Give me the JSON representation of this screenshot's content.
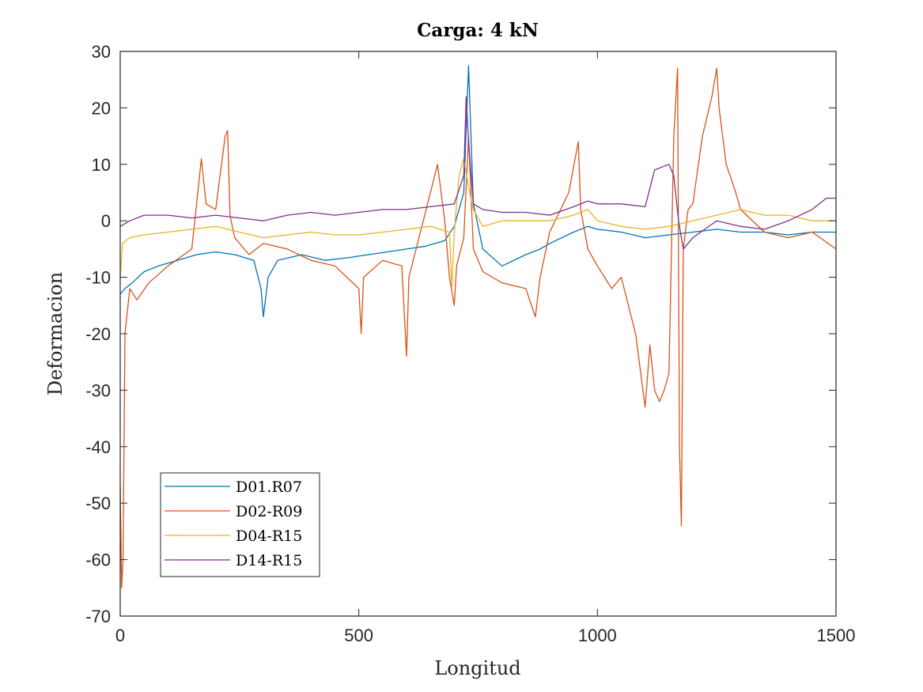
{
  "chart_data": {
    "type": "line",
    "title": "Carga: 4 kN",
    "xlabel": "Longitud",
    "ylabel": "Deformacion",
    "xlim": [
      0,
      1500
    ],
    "ylim": [
      -70,
      30
    ],
    "xticks": [
      0,
      500,
      1000,
      1500
    ],
    "xtick_labels": [
      "0",
      "500",
      "1000",
      "1500"
    ],
    "yticks": [
      30,
      20,
      10,
      0,
      -10,
      -20,
      -30,
      -40,
      -50,
      -60,
      -70
    ],
    "ytick_labels": [
      "30",
      "20",
      "10",
      "0",
      "-10",
      "-20",
      "-30",
      "-40",
      "-50",
      "-60",
      "-70"
    ],
    "grid": false,
    "legend_position": "bottom-left",
    "series": [
      {
        "name": "D01.R07",
        "color": "#0072BD",
        "x": [
          0,
          10,
          25,
          50,
          80,
          120,
          160,
          200,
          240,
          280,
          295,
          300,
          310,
          330,
          380,
          430,
          480,
          520,
          560,
          600,
          640,
          680,
          700,
          720,
          730,
          740,
          760,
          800,
          850,
          880,
          900,
          950,
          980,
          1000,
          1050,
          1100,
          1150,
          1200,
          1250,
          1300,
          1350,
          1400,
          1450,
          1500
        ],
        "y": [
          -13,
          -12,
          -11,
          -9,
          -8,
          -7,
          -6,
          -5.5,
          -6,
          -7,
          -12,
          -17,
          -10,
          -7,
          -6,
          -7,
          -6.5,
          -6,
          -5.5,
          -5,
          -4.5,
          -3.5,
          -1,
          5,
          27.5,
          3,
          -5,
          -8,
          -6,
          -5,
          -4,
          -2,
          -1,
          -1.5,
          -2,
          -3,
          -2.5,
          -2,
          -1.5,
          -2,
          -2,
          -2.5,
          -2,
          -2
        ]
      },
      {
        "name": "D02-R09",
        "color": "#D95319",
        "x": [
          0,
          3,
          6,
          10,
          20,
          35,
          60,
          100,
          150,
          170,
          180,
          200,
          220,
          225,
          230,
          240,
          270,
          300,
          350,
          400,
          450,
          500,
          505,
          510,
          550,
          590,
          600,
          605,
          620,
          650,
          665,
          680,
          690,
          700,
          705,
          720,
          730,
          740,
          760,
          800,
          850,
          870,
          880,
          900,
          940,
          960,
          965,
          980,
          1000,
          1030,
          1050,
          1080,
          1100,
          1110,
          1120,
          1130,
          1140,
          1150,
          1160,
          1168,
          1172,
          1176,
          1180,
          1190,
          1200,
          1220,
          1240,
          1250,
          1255,
          1270,
          1290,
          1300,
          1350,
          1400,
          1450,
          1500
        ],
        "y": [
          -47,
          -65,
          -60,
          -20,
          -12,
          -14,
          -11,
          -8,
          -5,
          11,
          3,
          2,
          15,
          16,
          1,
          -3,
          -6,
          -4,
          -5,
          -7,
          -8,
          -12,
          -20,
          -10,
          -7,
          -8,
          -24,
          -10,
          -5,
          5,
          10,
          0,
          -10,
          -15,
          -8,
          -3,
          15,
          -5,
          -9,
          -11,
          -12,
          -17,
          -10,
          -2,
          5,
          14,
          2,
          -5,
          -8,
          -12,
          -10,
          -20,
          -33,
          -22,
          -30,
          -32,
          -30,
          -27,
          15,
          27,
          -40,
          -54,
          -5,
          2,
          3,
          15,
          22,
          27,
          20,
          10,
          5,
          2,
          -2,
          -3,
          -2,
          -5
        ]
      },
      {
        "name": "D04-R15",
        "color": "#EDB120",
        "x": [
          0,
          5,
          20,
          50,
          100,
          150,
          200,
          250,
          300,
          350,
          400,
          450,
          500,
          550,
          600,
          650,
          690,
          695,
          700,
          710,
          720,
          730,
          740,
          760,
          800,
          850,
          900,
          950,
          980,
          1000,
          1050,
          1100,
          1150,
          1200,
          1250,
          1300,
          1350,
          1400,
          1450,
          1500
        ],
        "y": [
          -10,
          -4,
          -3,
          -2.5,
          -2,
          -1.5,
          -1,
          -2,
          -3,
          -2.5,
          -2,
          -2.5,
          -2.5,
          -2,
          -1.5,
          -1,
          -2,
          -12,
          -2,
          8,
          11,
          6,
          2,
          -1,
          0,
          0,
          0,
          1,
          2,
          0,
          -1,
          -1.5,
          -1,
          0,
          1,
          2,
          1,
          1,
          0,
          0
        ]
      },
      {
        "name": "D14-R15",
        "color": "#7E2F8E",
        "x": [
          0,
          20,
          50,
          100,
          150,
          200,
          250,
          300,
          350,
          400,
          450,
          500,
          550,
          600,
          650,
          700,
          720,
          725,
          730,
          740,
          760,
          800,
          850,
          900,
          950,
          980,
          1000,
          1050,
          1100,
          1120,
          1150,
          1160,
          1170,
          1180,
          1200,
          1250,
          1300,
          1350,
          1400,
          1450,
          1480,
          1500
        ],
        "y": [
          -1,
          0,
          1,
          1,
          0.5,
          1,
          0.5,
          0,
          1,
          1.5,
          1,
          1.5,
          2,
          2,
          2.5,
          3,
          8,
          22,
          14,
          3,
          2,
          1.5,
          1.5,
          1,
          2.5,
          3.5,
          3,
          3,
          2.5,
          9,
          10,
          8,
          0,
          -5,
          -3,
          0,
          -1,
          -1.5,
          0,
          2,
          4,
          4
        ]
      }
    ]
  }
}
